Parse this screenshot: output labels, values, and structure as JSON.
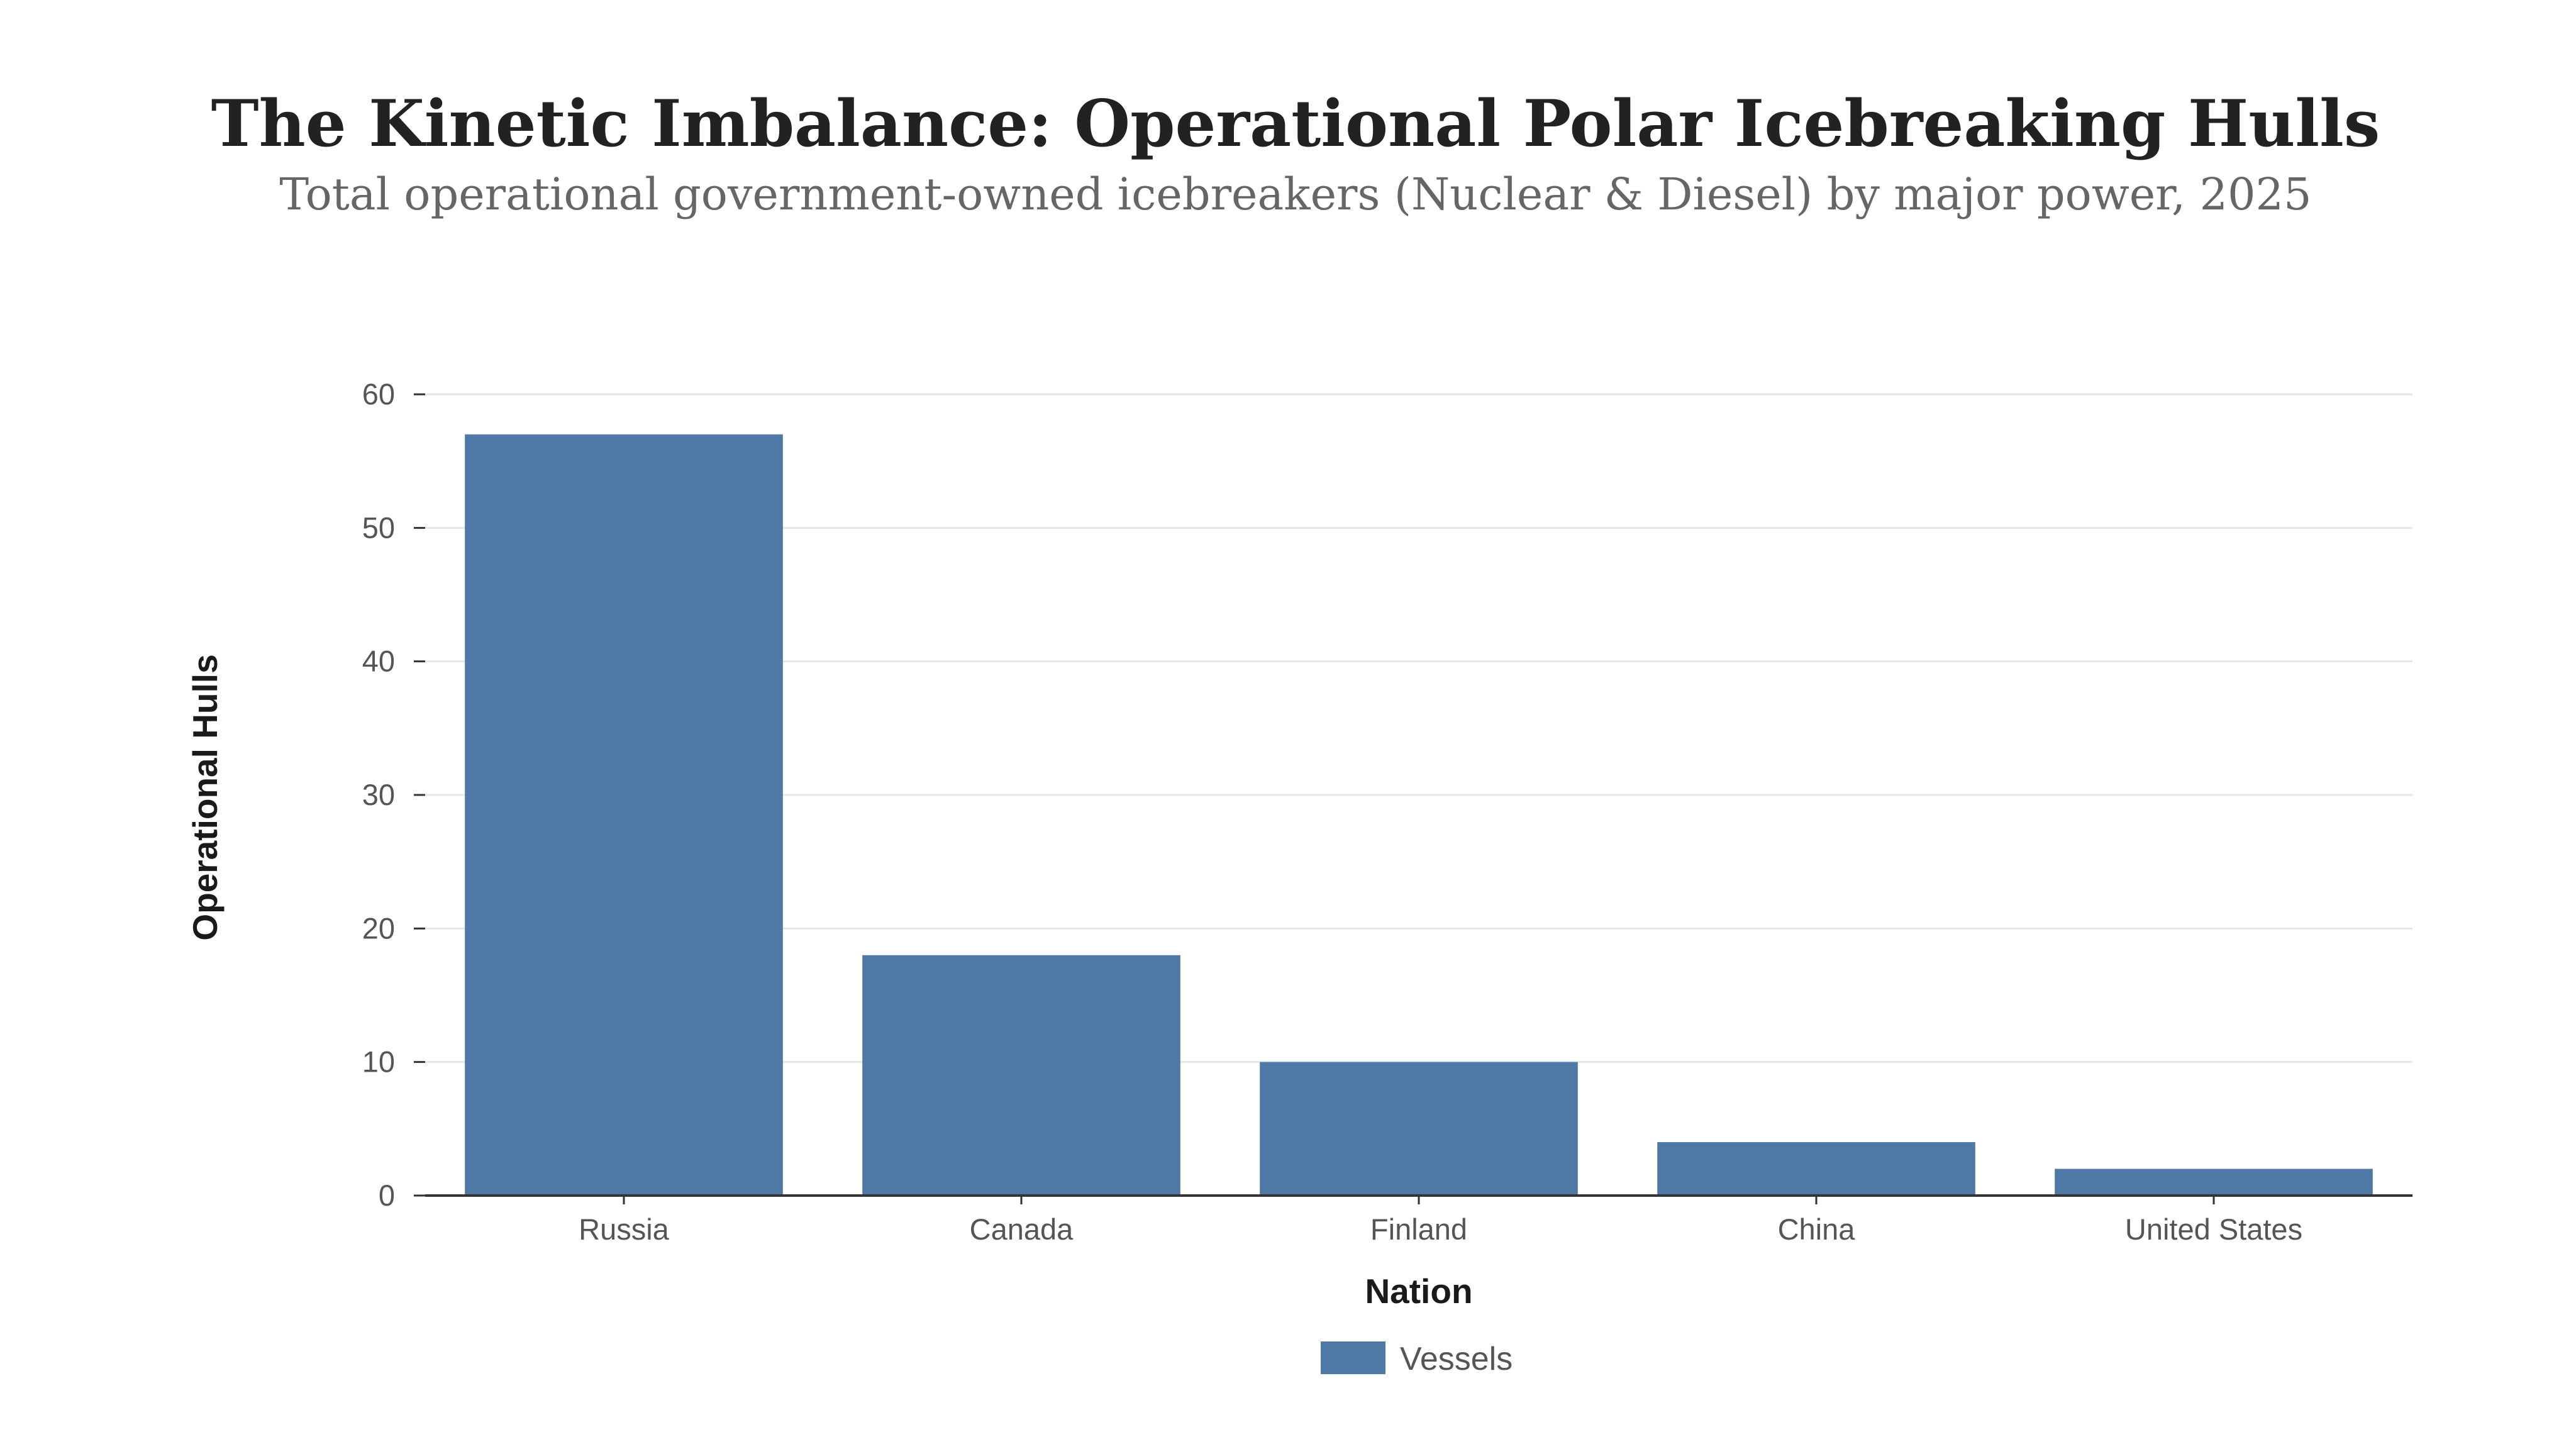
{
  "chart_data": {
    "type": "bar",
    "title": "The Kinetic Imbalance: Operational Polar Icebreaking Hulls",
    "subtitle": "Total operational government-owned icebreakers (Nuclear & Diesel) by major power, 2025",
    "xlabel": "Nation",
    "ylabel": "Operational Hulls",
    "categories": [
      "Russia",
      "Canada",
      "Finland",
      "China",
      "United States"
    ],
    "series": [
      {
        "name": "Vessels",
        "values": [
          57,
          18,
          10,
          4,
          2
        ],
        "color": "#4e78a6"
      }
    ],
    "ylim": [
      0,
      60
    ],
    "yticks": [
      0,
      10,
      20,
      30,
      40,
      50,
      60
    ],
    "grid": true,
    "legend_position": "bottom-center"
  },
  "colors": {
    "bar": "#4e78a6",
    "grid": "#e6e6e6",
    "axis": "#333333"
  }
}
